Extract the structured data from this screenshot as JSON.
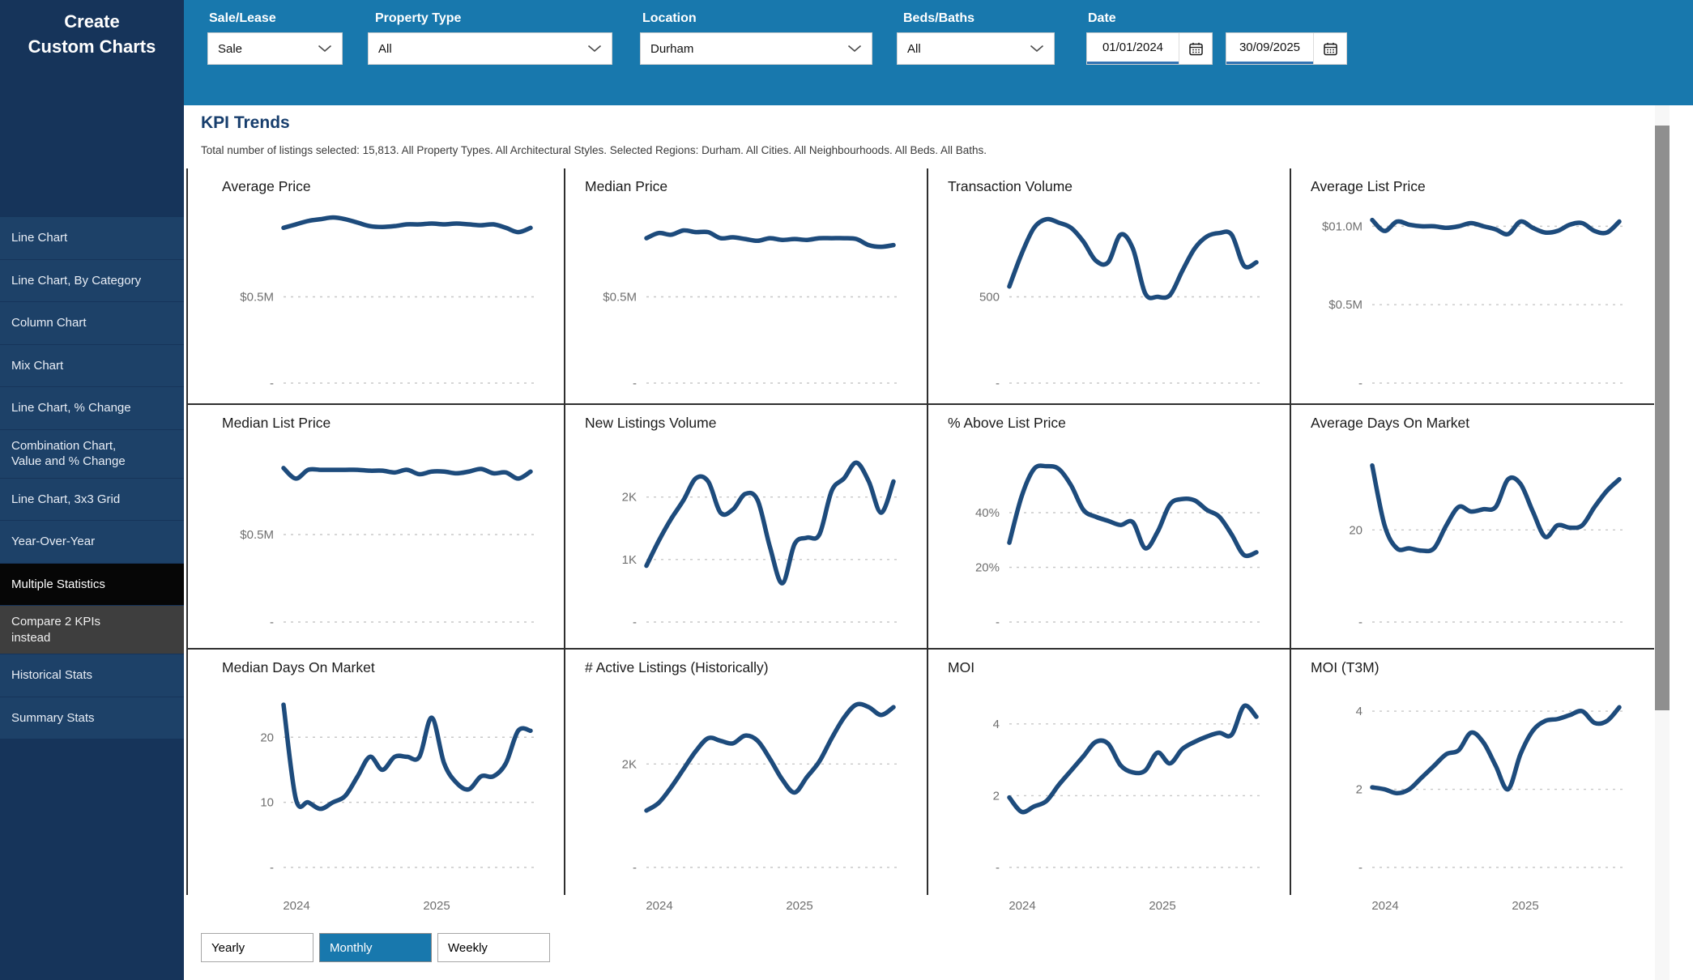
{
  "colors": {
    "sidebar_navy": "#16345a",
    "sidebar_item": "#1d4168",
    "selected_item_black": "#060606",
    "alt_item_gray": "#3e3e3e",
    "filter_bar_blue": "#1878ad",
    "chart_line": "#1d4b7c",
    "heading_blue": "#173e6d",
    "date_underline": "#3173b4"
  },
  "sidebar": {
    "title": "Create\nCustom Charts",
    "items": [
      {
        "label": "Line Chart",
        "state": "default"
      },
      {
        "label": "Line Chart, By Category",
        "state": "default"
      },
      {
        "label": "Column Chart",
        "state": "default"
      },
      {
        "label": "Mix Chart",
        "state": "default"
      },
      {
        "label": "Line Chart, % Change",
        "state": "default"
      },
      {
        "label": "Combination Chart,\nValue and % Change",
        "state": "default"
      },
      {
        "label": "Line Chart, 3x3 Grid",
        "state": "default"
      },
      {
        "label": "Year-Over-Year",
        "state": "default"
      },
      {
        "label": "Multiple Statistics",
        "state": "selected"
      },
      {
        "label": "Compare 2 KPIs\ninstead",
        "state": "alt"
      },
      {
        "label": "Historical Stats",
        "state": "default"
      },
      {
        "label": "Summary Stats",
        "state": "default"
      }
    ]
  },
  "filters": {
    "sale_lease": {
      "label": "Sale/Lease",
      "value": "Sale"
    },
    "property_type": {
      "label": "Property Type",
      "value": "All"
    },
    "location": {
      "label": "Location",
      "value": "Durham"
    },
    "beds_baths": {
      "label": "Beds/Baths",
      "value": "All"
    },
    "date": {
      "label": "Date",
      "from": "01/01/2024",
      "to": "30/09/2025"
    }
  },
  "header": {
    "title": "KPI Trends",
    "subtitle": "Total number of listings selected: 15,813. All Property Types. All Architectural Styles. Selected Regions: Durham. All Cities. All Neighbourhoods. All Beds. All Baths."
  },
  "frequency": {
    "options": [
      {
        "label": "Yearly",
        "active": false
      },
      {
        "label": "Monthly",
        "active": true
      },
      {
        "label": "Weekly",
        "active": false
      }
    ]
  },
  "chart_data": {
    "layout": "3 rows x 4 columns of line sparklines",
    "x_axis": {
      "years": [
        "2024",
        "2025"
      ],
      "unit": "month",
      "start": "2024-01",
      "end": "2025-09",
      "frequency": "Monthly"
    },
    "grid": "dashed horizontal gridlines at listed ticks, zero tick labelled '-'",
    "charts": [
      {
        "type": "line",
        "title": "Average Price",
        "ylabel_ticks": [
          {
            "v": 0.5,
            "label": "$0.5M"
          },
          {
            "v": 0,
            "label": "-"
          }
        ],
        "ymax": 1.0,
        "values": [
          0.9,
          0.92,
          0.94,
          0.95,
          0.96,
          0.95,
          0.93,
          0.91,
          0.905,
          0.91,
          0.92,
          0.92,
          0.925,
          0.92,
          0.925,
          0.92,
          0.915,
          0.92,
          0.9,
          0.875,
          0.9
        ]
      },
      {
        "type": "line",
        "title": "Median Price",
        "ylabel_ticks": [
          {
            "v": 0.5,
            "label": "$0.5M"
          },
          {
            "v": 0,
            "label": "-"
          }
        ],
        "ymax": 1.0,
        "values": [
          0.84,
          0.87,
          0.86,
          0.885,
          0.875,
          0.875,
          0.84,
          0.845,
          0.835,
          0.825,
          0.84,
          0.83,
          0.835,
          0.83,
          0.84,
          0.84,
          0.84,
          0.835,
          0.8,
          0.79,
          0.8
        ]
      },
      {
        "type": "line",
        "title": "Transaction Volume",
        "ylabel_ticks": [
          {
            "v": 500,
            "label": "500"
          },
          {
            "v": 0,
            "label": "-"
          }
        ],
        "ymax": 1000,
        "values": [
          560,
          750,
          900,
          950,
          930,
          900,
          820,
          710,
          700,
          860,
          780,
          520,
          500,
          510,
          650,
          780,
          850,
          870,
          860,
          680,
          700
        ]
      },
      {
        "type": "line",
        "title": "Average List Price",
        "ylabel_ticks": [
          {
            "v": 1.0,
            "label": "$01.0M"
          },
          {
            "v": 0.5,
            "label": "$0.5M"
          },
          {
            "v": 0,
            "label": "-"
          }
        ],
        "ymax": 1.1,
        "values": [
          1.04,
          0.97,
          1.03,
          1.01,
          1.0,
          1.0,
          0.99,
          1.0,
          1.02,
          1.0,
          0.98,
          0.95,
          1.03,
          0.99,
          0.96,
          0.97,
          1.01,
          1.02,
          0.97,
          0.96,
          1.03
        ]
      },
      {
        "type": "line",
        "title": "Median List Price",
        "ylabel_ticks": [
          {
            "v": 0.5,
            "label": "$0.5M"
          },
          {
            "v": 0,
            "label": "-"
          }
        ],
        "ymax": 1.0,
        "values": [
          0.88,
          0.82,
          0.87,
          0.87,
          0.87,
          0.87,
          0.87,
          0.865,
          0.865,
          0.855,
          0.87,
          0.845,
          0.86,
          0.86,
          0.85,
          0.86,
          0.875,
          0.85,
          0.855,
          0.82,
          0.86
        ]
      },
      {
        "type": "line",
        "title": "New Listings Volume",
        "ylabel_ticks": [
          {
            "v": 2000,
            "label": "2K"
          },
          {
            "v": 1000,
            "label": "1K"
          },
          {
            "v": 0,
            "label": "-"
          }
        ],
        "ymax": 2800,
        "values": [
          900,
          1300,
          1650,
          1950,
          2300,
          2250,
          1750,
          1800,
          2050,
          1950,
          1200,
          620,
          1250,
          1350,
          1400,
          2100,
          2300,
          2550,
          2250,
          1750,
          2250
        ]
      },
      {
        "type": "line",
        "title": "% Above List Price",
        "ylabel_ticks": [
          {
            "v": 40,
            "label": "40%"
          },
          {
            "v": 20,
            "label": "20%"
          },
          {
            "v": 0,
            "label": "-"
          }
        ],
        "ymax": 64,
        "values": [
          29,
          46,
          56,
          57,
          56,
          50,
          41,
          38.5,
          37,
          35.5,
          36.5,
          27,
          33,
          43,
          45,
          44.5,
          41,
          38.5,
          32,
          24.5,
          25.5
        ]
      },
      {
        "type": "line",
        "title": "Average Days On Market",
        "ylabel_ticks": [
          {
            "v": 20,
            "label": "20"
          },
          {
            "v": 0,
            "label": "-"
          }
        ],
        "ymax": 38,
        "values": [
          34,
          21,
          16,
          16,
          15.5,
          16,
          21,
          25,
          24,
          24.5,
          25,
          31,
          30,
          24,
          18.5,
          21,
          20.5,
          21,
          25,
          28.5,
          31
        ]
      },
      {
        "type": "line",
        "title": "Median Days On Market",
        "ylabel_ticks": [
          {
            "v": 20,
            "label": "20"
          },
          {
            "v": 10,
            "label": "10"
          },
          {
            "v": 0,
            "label": "-"
          }
        ],
        "ymax": 27,
        "values": [
          25,
          10.5,
          10,
          9,
          10,
          11,
          14,
          17,
          15,
          17,
          17,
          17,
          23,
          16,
          13,
          12,
          14,
          14,
          16,
          21,
          21
        ]
      },
      {
        "type": "line",
        "title": "# Active Listings (Historically)",
        "ylabel_ticks": [
          {
            "v": 2000,
            "label": "2K"
          },
          {
            "v": 0,
            "label": "-"
          }
        ],
        "ymax": 3400,
        "values": [
          1100,
          1250,
          1550,
          1900,
          2250,
          2500,
          2450,
          2400,
          2550,
          2450,
          2100,
          1700,
          1450,
          1750,
          2050,
          2500,
          2900,
          3150,
          3100,
          2950,
          3100
        ]
      },
      {
        "type": "line",
        "title": "MOI",
        "ylabel_ticks": [
          {
            "v": 4,
            "label": "4"
          },
          {
            "v": 2,
            "label": "2"
          },
          {
            "v": 0,
            "label": "-"
          }
        ],
        "ymax": 4.9,
        "values": [
          1.95,
          1.55,
          1.7,
          1.85,
          2.3,
          2.7,
          3.1,
          3.5,
          3.45,
          2.85,
          2.65,
          2.7,
          3.2,
          2.9,
          3.3,
          3.5,
          3.65,
          3.75,
          3.7,
          4.5,
          4.2
        ]
      },
      {
        "type": "line",
        "title": "MOI (T3M)",
        "ylabel_ticks": [
          {
            "v": 4,
            "label": "4"
          },
          {
            "v": 2,
            "label": "2"
          },
          {
            "v": 0,
            "label": "-"
          }
        ],
        "ymax": 4.5,
        "values": [
          2.05,
          2.0,
          1.9,
          2.0,
          2.3,
          2.6,
          2.9,
          3.0,
          3.45,
          3.2,
          2.6,
          2.0,
          2.9,
          3.5,
          3.75,
          3.8,
          3.9,
          4.0,
          3.7,
          3.75,
          4.1
        ]
      }
    ]
  }
}
